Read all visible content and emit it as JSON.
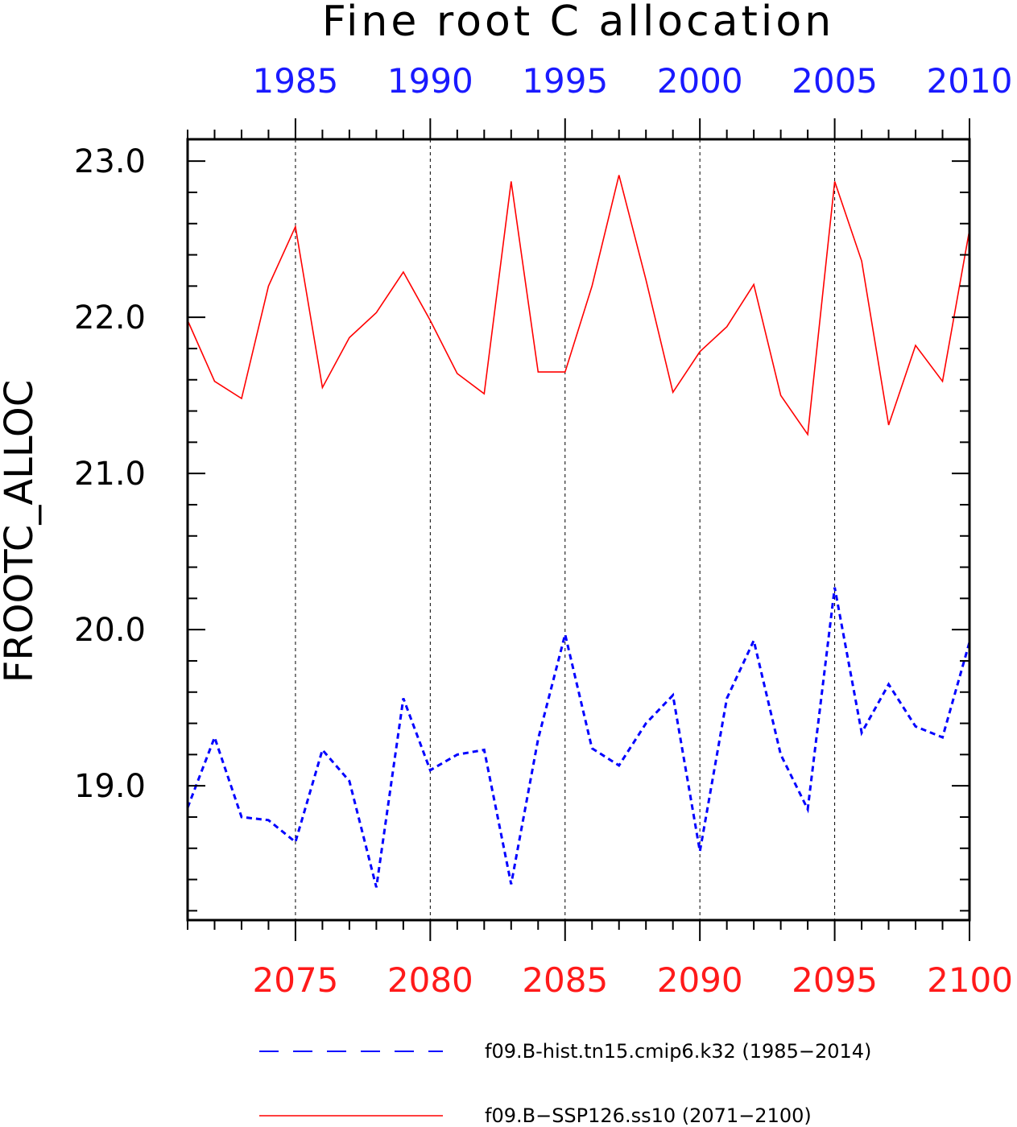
{
  "chart_data": {
    "type": "line",
    "title": "Fine root C allocation",
    "ylabel": "FROOTC_ALLOC",
    "ylim": [
      18.14,
      23.14
    ],
    "yticks": [
      "19.0",
      "20.0",
      "21.0",
      "22.0",
      "23.0"
    ],
    "top_axis": {
      "range": [
        1981,
        2010
      ],
      "ticks": [
        "1985",
        "1990",
        "1995",
        "2000",
        "2005",
        "2010"
      ],
      "color": "#1a1aff"
    },
    "bottom_axis": {
      "range": [
        2071,
        2100
      ],
      "ticks": [
        "2075",
        "2080",
        "2085",
        "2090",
        "2095",
        "2100"
      ],
      "color": "#ff1a1a"
    },
    "grid": "vertical dashed at bottom-axis major ticks",
    "legend_position": "bottom",
    "series": [
      {
        "name": "f09.B-hist.tn15.cmip6.k32 (1985−2014)",
        "axis": "top",
        "color": "#0000ff",
        "style": "dashed",
        "x": [
          1981,
          1982,
          1983,
          1984,
          1985,
          1986,
          1987,
          1988,
          1989,
          1990,
          1991,
          1992,
          1993,
          1994,
          1995,
          1996,
          1997,
          1998,
          1999,
          2000,
          2001,
          2002,
          2003,
          2004,
          2005,
          2006,
          2007,
          2008,
          2009,
          2010
        ],
        "values": [
          18.86,
          19.31,
          18.8,
          18.78,
          18.64,
          19.23,
          19.03,
          18.35,
          19.56,
          19.1,
          19.2,
          19.23,
          18.37,
          19.3,
          19.97,
          19.24,
          19.13,
          19.4,
          19.58,
          18.58,
          19.56,
          19.93,
          19.2,
          18.85,
          20.27,
          19.34,
          19.65,
          19.38,
          19.31,
          19.92
        ]
      },
      {
        "name": "f09.B−SSP126.ss10 (2071−2100)",
        "axis": "bottom",
        "color": "#ff0000",
        "style": "solid",
        "x": [
          2071,
          2072,
          2073,
          2074,
          2075,
          2076,
          2077,
          2078,
          2079,
          2080,
          2081,
          2082,
          2083,
          2084,
          2085,
          2086,
          2087,
          2088,
          2089,
          2090,
          2091,
          2092,
          2093,
          2094,
          2095,
          2096,
          2097,
          2098,
          2099,
          2100
        ],
        "values": [
          21.98,
          21.59,
          21.48,
          22.2,
          22.58,
          21.55,
          21.87,
          22.03,
          22.29,
          21.98,
          21.64,
          21.51,
          22.87,
          21.65,
          21.65,
          22.2,
          22.91,
          22.24,
          21.52,
          21.78,
          21.94,
          22.21,
          21.5,
          21.25,
          22.87,
          22.36,
          21.31,
          21.82,
          21.59,
          22.56
        ]
      }
    ]
  }
}
